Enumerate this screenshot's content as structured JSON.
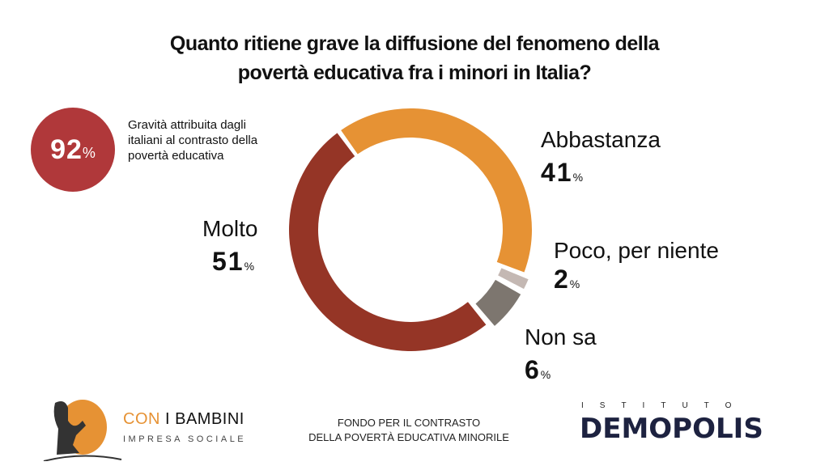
{
  "chart_data": {
    "type": "pie",
    "subtype": "donut",
    "title_lines": [
      "Quanto ritiene grave la diffusione del fenomeno della",
      "povertà educativa fra i minori in Italia?"
    ],
    "unit": "%",
    "slices": [
      {
        "label": "Abbastanza",
        "value": 41,
        "color": "#E69234"
      },
      {
        "label": "Poco, per niente",
        "value": 2,
        "color": "#C4B8B3"
      },
      {
        "label": "Non sa",
        "value": 6,
        "color": "#7D766F"
      },
      {
        "label": "Molto",
        "value": 51,
        "color": "#953526"
      }
    ]
  },
  "badge": {
    "value": "92",
    "unit": "%",
    "description_lines": [
      "Gravità attribuita dagli",
      "italiani al contrasto della",
      "povertà educativa"
    ],
    "color": "#B0383A"
  },
  "footer": {
    "left_logo": {
      "name_part1": "CON",
      "name_part2": " I BAMBINI",
      "subtitle": "IMPRESA SOCIALE"
    },
    "center_lines": [
      "FONDO PER IL CONTRASTO",
      "DELLA POVERTÀ EDUCATIVA MINORILE"
    ],
    "right_logo": {
      "top": "ISTITUTO",
      "main": "DEMOPOLIS"
    }
  }
}
